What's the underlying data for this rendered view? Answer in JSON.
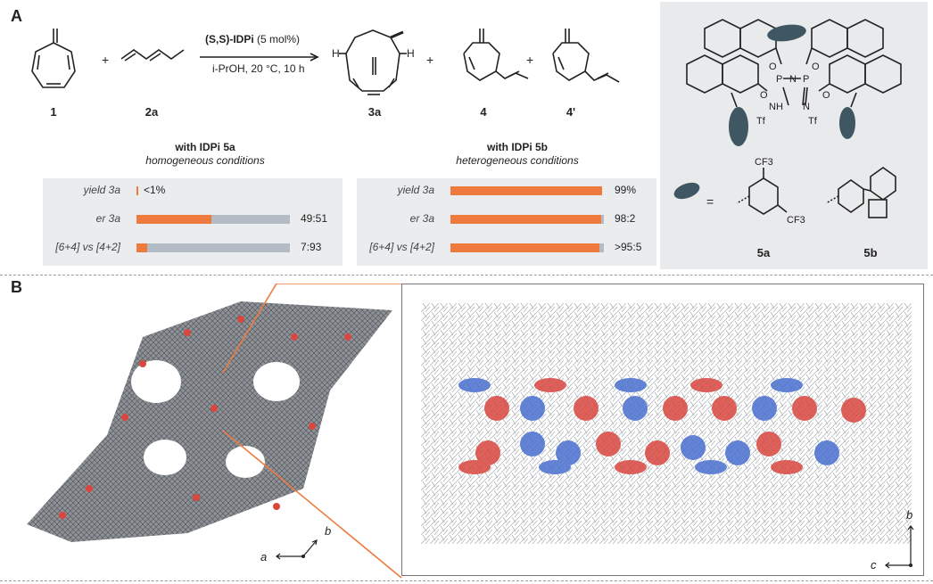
{
  "panelA": {
    "letter": "A",
    "compounds": {
      "c1": "1",
      "c2a": "2a",
      "c3a": "3a",
      "c4": "4",
      "c4p": "4'"
    },
    "arrow": {
      "catalyst": "(S,S)-IDPi",
      "loading": "(5 mol%)",
      "conditions": "i-PrOH, 20 °C, 10 h"
    },
    "left_conditions": {
      "title": "with IDPi 5a",
      "subtitle": "homogeneous conditions"
    },
    "right_conditions": {
      "title": "with IDPi 5b",
      "subtitle": "heterogeneous conditions"
    },
    "legend": {
      "equals": "=",
      "label5a": "5a",
      "label5b": "5b",
      "cf3_top": "CF3",
      "cf3_bottom": "CF3"
    },
    "catalyst_atoms": {
      "tf1": "Tf",
      "tf2": "Tf",
      "nh": "NH",
      "n": "N",
      "n2": "N",
      "p1": "P",
      "p2": "P"
    }
  },
  "chart_data": [
    {
      "type": "bar",
      "group": "IDPi 5a",
      "categories": [
        "yield 3a",
        "er 3a",
        "[6+4] vs [4+2]"
      ],
      "value_labels": [
        "<1%",
        "49:51",
        "7:93"
      ],
      "values": [
        1,
        49,
        7
      ],
      "colors": {
        "primary": "#ee7a3e",
        "secondary": "#b3bcc4"
      }
    },
    {
      "type": "bar",
      "group": "IDPi 5b",
      "categories": [
        "yield 3a",
        "er 3a",
        "[6+4] vs [4+2]"
      ],
      "value_labels": [
        "99%",
        "98:2",
        ">95:5"
      ],
      "values": [
        99,
        98,
        97
      ],
      "colors": {
        "primary": "#ee7a3e",
        "secondary": "#b3bcc4"
      }
    }
  ],
  "panelB": {
    "letter": "B",
    "axes_left": {
      "a": "a",
      "b": "b"
    },
    "axes_right": {
      "b": "b",
      "c": "c"
    }
  },
  "colors": {
    "orange": "#ee7a3e",
    "gray_bar": "#b3bcc4",
    "blue": "#4a6fd0",
    "red": "#d9473f",
    "slate": "#3f5663"
  }
}
